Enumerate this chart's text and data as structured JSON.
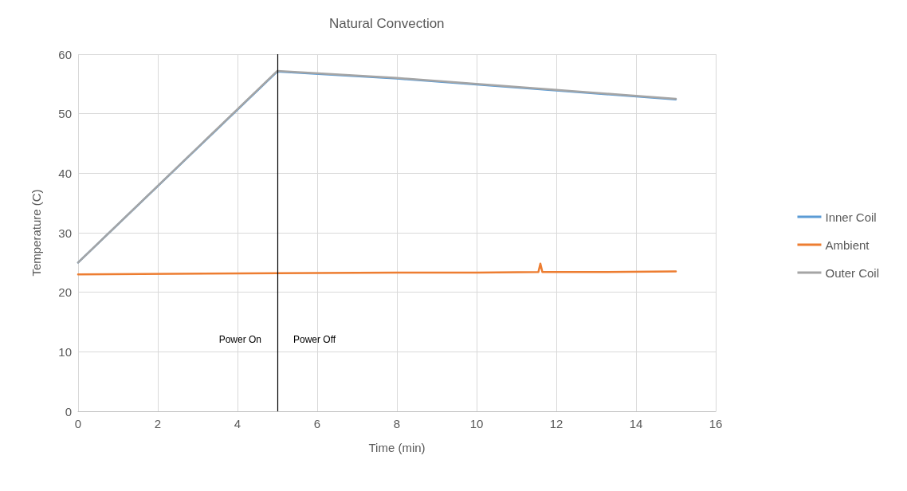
{
  "chart_data": {
    "type": "line",
    "title": "Natural Convection",
    "xlabel": "Time (min)",
    "ylabel": "Temperature (C)",
    "xlim": [
      0,
      16
    ],
    "xticks": [
      0,
      2,
      4,
      6,
      8,
      10,
      12,
      14,
      16
    ],
    "ylim": [
      0,
      60
    ],
    "yticks": [
      0,
      10,
      20,
      30,
      40,
      50,
      60
    ],
    "grid": true,
    "legend": "right",
    "marker": "none",
    "line_style": "solid",
    "series": [
      {
        "name": "Inner Coil",
        "color": "#5b9bd5",
        "x": [
          0,
          5,
          8,
          10,
          12,
          15
        ],
        "values": [
          25,
          57.1,
          55.9,
          54.9,
          53.9,
          52.4
        ]
      },
      {
        "name": "Ambient",
        "color": "#ed7d31",
        "x": [
          0,
          5,
          8,
          10,
          11.55,
          11.6,
          11.65,
          13,
          15
        ],
        "values": [
          23,
          23.2,
          23.3,
          23.3,
          23.4,
          24.8,
          23.4,
          23.4,
          23.5
        ]
      },
      {
        "name": "Outer Coil",
        "color": "#a5a5a5",
        "x": [
          0,
          5,
          8,
          10,
          12,
          15
        ],
        "values": [
          25,
          57.2,
          56,
          55,
          54,
          52.5
        ]
      }
    ],
    "ref_lines": [
      {
        "axis": "x",
        "value": 5,
        "color": "#000000"
      }
    ],
    "annotations": [
      "Power On",
      "Power Off"
    ]
  }
}
